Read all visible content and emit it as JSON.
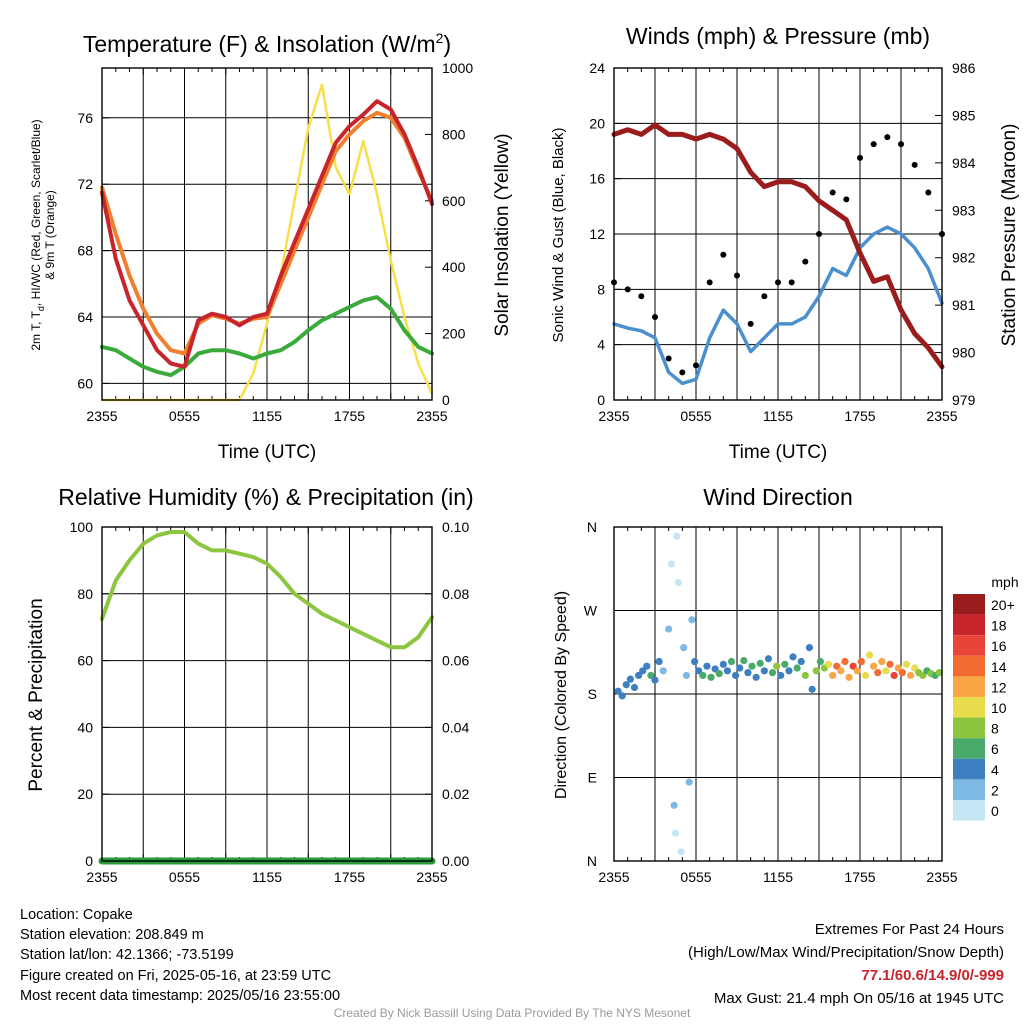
{
  "chart_data": [
    {
      "type": "line",
      "title": "Temperature (F) & Insolation (W/m²)",
      "xlabel": "Time (UTC)",
      "ylabel_left": "2m T, Td, HI/WC (Red, Green, Scarlet/Blue) & 9m T (Orange)",
      "ylabel_left_parts": {
        "a": "2m T, T",
        "sub": "d",
        "b": ", HI/WC (Red, Green, Scarlet/Blue)",
        "line2": "& 9m T (Orange)"
      },
      "ylabel_right": "Solar Insolation (Yellow)",
      "x_ticks": [
        "2355",
        "0555",
        "1155",
        "1755",
        "2355"
      ],
      "ylim_left": [
        59,
        79
      ],
      "ylim_right": [
        0,
        1000
      ],
      "yticks_left": [
        60,
        64,
        68,
        72,
        76
      ],
      "yticks_right": [
        0,
        200,
        400,
        600,
        800,
        1000
      ],
      "x": [
        0,
        1,
        2,
        3,
        4,
        5,
        6,
        7,
        8,
        9,
        10,
        11,
        12,
        13,
        14,
        15,
        16,
        17,
        18,
        19,
        20,
        21,
        22,
        23,
        24
      ],
      "series": [
        {
          "name": "2m T",
          "color": "#c8242b",
          "axis": "left",
          "values": [
            71.5,
            67.5,
            65.0,
            63.5,
            62.0,
            61.2,
            61.0,
            63.8,
            64.2,
            64.0,
            63.5,
            64.0,
            64.2,
            66.5,
            68.5,
            70.5,
            72.5,
            74.5,
            75.5,
            76.2,
            77.0,
            76.5,
            75.0,
            73.0,
            70.8
          ]
        },
        {
          "name": "9m T",
          "color": "#f07f2e",
          "axis": "left",
          "values": [
            71.8,
            69.0,
            66.5,
            64.5,
            63.0,
            62.0,
            61.8,
            63.6,
            64.1,
            63.9,
            63.6,
            63.9,
            64.0,
            66.0,
            68.0,
            70.0,
            72.0,
            74.0,
            75.0,
            75.8,
            76.3,
            76.0,
            74.8,
            72.8,
            71.0
          ]
        },
        {
          "name": "Td",
          "color": "#3aaa3a",
          "axis": "left",
          "values": [
            62.2,
            62.0,
            61.5,
            61.0,
            60.7,
            60.5,
            61.0,
            61.8,
            62.0,
            62.0,
            61.8,
            61.5,
            61.8,
            62.0,
            62.5,
            63.2,
            63.8,
            64.2,
            64.6,
            65.0,
            65.2,
            64.5,
            63.2,
            62.2,
            61.8
          ]
        },
        {
          "name": "Insolation",
          "color": "#f6e04a",
          "axis": "right",
          "values": [
            0,
            0,
            0,
            0,
            0,
            0,
            0,
            0,
            0,
            0,
            0,
            80,
            230,
            380,
            600,
            820,
            950,
            700,
            620,
            780,
            620,
            420,
            250,
            110,
            20
          ]
        }
      ]
    },
    {
      "type": "line",
      "title": "Winds (mph) & Pressure (mb)",
      "xlabel": "Time (UTC)",
      "ylabel_left": "Sonic Wind & Gust (Blue, Black)",
      "ylabel_right": "Station Pressure (Maroon)",
      "x_ticks": [
        "2355",
        "0555",
        "1155",
        "1755",
        "2355"
      ],
      "ylim_left": [
        0,
        24
      ],
      "ylim_right": [
        979,
        986
      ],
      "yticks_left": [
        0,
        4,
        8,
        12,
        16,
        20,
        24
      ],
      "yticks_right": [
        979,
        980,
        981,
        982,
        983,
        984,
        985,
        986
      ],
      "x": [
        0,
        1,
        2,
        3,
        4,
        5,
        6,
        7,
        8,
        9,
        10,
        11,
        12,
        13,
        14,
        15,
        16,
        17,
        18,
        19,
        20,
        21,
        22,
        23,
        24
      ],
      "series": [
        {
          "name": "Sonic Wind",
          "color": "#4a90cf",
          "axis": "left",
          "values": [
            5.5,
            5.2,
            5.0,
            4.5,
            2.0,
            1.2,
            1.5,
            4.5,
            6.5,
            5.5,
            3.5,
            4.5,
            5.5,
            5.5,
            6.0,
            7.5,
            9.5,
            9.0,
            11.0,
            12.0,
            12.5,
            12.0,
            11.0,
            9.5,
            7.0
          ]
        },
        {
          "name": "Gust",
          "color": "#000000",
          "axis": "left",
          "values": [
            8.5,
            8.0,
            7.5,
            6.0,
            3.0,
            2.0,
            2.5,
            8.5,
            10.5,
            9.0,
            5.5,
            7.5,
            8.5,
            8.5,
            10.0,
            12.0,
            15.0,
            14.5,
            17.5,
            18.5,
            19.0,
            18.5,
            17.0,
            15.0,
            12.0
          ]
        },
        {
          "name": "Station Pressure",
          "color": "#9b1c1c",
          "axis": "right",
          "values": [
            984.6,
            984.7,
            984.6,
            984.8,
            984.6,
            984.6,
            984.5,
            984.6,
            984.5,
            984.3,
            983.8,
            983.5,
            983.6,
            983.6,
            983.5,
            983.2,
            983.0,
            982.8,
            982.1,
            981.5,
            981.6,
            980.9,
            980.4,
            980.1,
            979.7
          ]
        }
      ]
    },
    {
      "type": "line",
      "title": "Relative Humidity (%) & Precipitation (in)",
      "xlabel": "",
      "ylabel_left": "Percent & Precipitation",
      "x_ticks": [
        "2355",
        "0555",
        "1155",
        "1755",
        "2355"
      ],
      "ylim_left": [
        0,
        100
      ],
      "ylim_right": [
        0,
        0.1
      ],
      "yticks_left": [
        0,
        20,
        40,
        60,
        80,
        100
      ],
      "yticks_right": [
        "0.00",
        "0.02",
        "0.04",
        "0.06",
        "0.08",
        "0.10"
      ],
      "x": [
        0,
        1,
        2,
        3,
        4,
        5,
        6,
        7,
        8,
        9,
        10,
        11,
        12,
        13,
        14,
        15,
        16,
        17,
        18,
        19,
        20,
        21,
        22,
        23,
        24
      ],
      "series": [
        {
          "name": "Relative Humidity",
          "color": "#8cc63f",
          "axis": "left",
          "values": [
            72.5,
            84,
            90,
            95,
            97.5,
            98.5,
            98.5,
            95,
            93,
            93,
            92,
            91,
            89,
            85,
            80,
            77,
            74,
            72,
            70,
            68,
            66,
            64,
            64,
            67,
            73
          ]
        },
        {
          "name": "Precipitation",
          "color": "#2a9a3a",
          "axis": "right",
          "values": [
            0,
            0,
            0,
            0,
            0,
            0,
            0,
            0,
            0,
            0,
            0,
            0,
            0,
            0,
            0,
            0,
            0,
            0,
            0,
            0,
            0,
            0,
            0,
            0,
            0
          ]
        }
      ]
    },
    {
      "type": "scatter",
      "title": "Wind Direction",
      "ylabel": "Direction (Colored By Speed)",
      "x_ticks": [
        "2355",
        "0555",
        "1155",
        "1755",
        "2355"
      ],
      "y_ticks": [
        "N",
        "E",
        "S",
        "W",
        "N"
      ],
      "ylim": [
        0,
        360
      ],
      "colorbar": {
        "unit": "mph",
        "labels": [
          "20+",
          "18",
          "16",
          "14",
          "12",
          "10",
          "8",
          "6",
          "4",
          "2",
          "0"
        ],
        "colors": [
          "#9b1c1c",
          "#c8242b",
          "#e8443a",
          "#f26b30",
          "#f9a646",
          "#e6dc4c",
          "#8cc63f",
          "#4aaa6a",
          "#3d7fc1",
          "#7eb9e3",
          "#c6e6f6"
        ]
      },
      "points": [
        {
          "x": 0.3,
          "y": 183,
          "speed": 4
        },
        {
          "x": 0.6,
          "y": 178,
          "speed": 4
        },
        {
          "x": 0.9,
          "y": 190,
          "speed": 4
        },
        {
          "x": 1.2,
          "y": 196,
          "speed": 4
        },
        {
          "x": 1.5,
          "y": 187,
          "speed": 4
        },
        {
          "x": 1.8,
          "y": 200,
          "speed": 4
        },
        {
          "x": 2.1,
          "y": 205,
          "speed": 4
        },
        {
          "x": 2.4,
          "y": 210,
          "speed": 4
        },
        {
          "x": 2.7,
          "y": 200,
          "speed": 6
        },
        {
          "x": 3.0,
          "y": 195,
          "speed": 4
        },
        {
          "x": 3.3,
          "y": 215,
          "speed": 4
        },
        {
          "x": 3.6,
          "y": 205,
          "speed": 2
        },
        {
          "x": 4.0,
          "y": 250,
          "speed": 2
        },
        {
          "x": 4.2,
          "y": 320,
          "speed": 0
        },
        {
          "x": 4.4,
          "y": 60,
          "speed": 2
        },
        {
          "x": 4.5,
          "y": 30,
          "speed": 0
        },
        {
          "x": 4.6,
          "y": 350,
          "speed": 0
        },
        {
          "x": 4.7,
          "y": 300,
          "speed": 0
        },
        {
          "x": 4.9,
          "y": 10,
          "speed": 0
        },
        {
          "x": 5.1,
          "y": 230,
          "speed": 2
        },
        {
          "x": 5.3,
          "y": 200,
          "speed": 2
        },
        {
          "x": 5.5,
          "y": 85,
          "speed": 2
        },
        {
          "x": 5.7,
          "y": 260,
          "speed": 2
        },
        {
          "x": 5.9,
          "y": 215,
          "speed": 4
        },
        {
          "x": 6.2,
          "y": 205,
          "speed": 4
        },
        {
          "x": 6.5,
          "y": 200,
          "speed": 6
        },
        {
          "x": 6.8,
          "y": 210,
          "speed": 4
        },
        {
          "x": 7.1,
          "y": 198,
          "speed": 6
        },
        {
          "x": 7.4,
          "y": 207,
          "speed": 4
        },
        {
          "x": 7.7,
          "y": 202,
          "speed": 6
        },
        {
          "x": 8.0,
          "y": 212,
          "speed": 4
        },
        {
          "x": 8.3,
          "y": 205,
          "speed": 4
        },
        {
          "x": 8.6,
          "y": 215,
          "speed": 6
        },
        {
          "x": 8.9,
          "y": 200,
          "speed": 4
        },
        {
          "x": 9.2,
          "y": 208,
          "speed": 4
        },
        {
          "x": 9.5,
          "y": 216,
          "speed": 6
        },
        {
          "x": 9.8,
          "y": 203,
          "speed": 4
        },
        {
          "x": 10.1,
          "y": 210,
          "speed": 6
        },
        {
          "x": 10.4,
          "y": 198,
          "speed": 4
        },
        {
          "x": 10.7,
          "y": 213,
          "speed": 6
        },
        {
          "x": 11.0,
          "y": 205,
          "speed": 4
        },
        {
          "x": 11.3,
          "y": 218,
          "speed": 4
        },
        {
          "x": 11.6,
          "y": 203,
          "speed": 6
        },
        {
          "x": 11.9,
          "y": 210,
          "speed": 8
        },
        {
          "x": 12.2,
          "y": 200,
          "speed": 4
        },
        {
          "x": 12.5,
          "y": 212,
          "speed": 6
        },
        {
          "x": 12.8,
          "y": 205,
          "speed": 4
        },
        {
          "x": 13.1,
          "y": 220,
          "speed": 4
        },
        {
          "x": 13.4,
          "y": 208,
          "speed": 6
        },
        {
          "x": 13.7,
          "y": 215,
          "speed": 4
        },
        {
          "x": 14.0,
          "y": 200,
          "speed": 8
        },
        {
          "x": 14.3,
          "y": 230,
          "speed": 4
        },
        {
          "x": 14.5,
          "y": 185,
          "speed": 4
        },
        {
          "x": 14.8,
          "y": 205,
          "speed": 8
        },
        {
          "x": 15.1,
          "y": 215,
          "speed": 6
        },
        {
          "x": 15.4,
          "y": 208,
          "speed": 8
        },
        {
          "x": 15.7,
          "y": 212,
          "speed": 10
        },
        {
          "x": 16.0,
          "y": 200,
          "speed": 12
        },
        {
          "x": 16.3,
          "y": 210,
          "speed": 14
        },
        {
          "x": 16.6,
          "y": 205,
          "speed": 12
        },
        {
          "x": 16.9,
          "y": 215,
          "speed": 14
        },
        {
          "x": 17.2,
          "y": 198,
          "speed": 12
        },
        {
          "x": 17.5,
          "y": 210,
          "speed": 16
        },
        {
          "x": 17.8,
          "y": 205,
          "speed": 12
        },
        {
          "x": 18.1,
          "y": 215,
          "speed": 14
        },
        {
          "x": 18.4,
          "y": 200,
          "speed": 10
        },
        {
          "x": 18.7,
          "y": 222,
          "speed": 10
        },
        {
          "x": 19.0,
          "y": 210,
          "speed": 12
        },
        {
          "x": 19.3,
          "y": 203,
          "speed": 14
        },
        {
          "x": 19.6,
          "y": 215,
          "speed": 12
        },
        {
          "x": 19.9,
          "y": 205,
          "speed": 10
        },
        {
          "x": 20.2,
          "y": 212,
          "speed": 14
        },
        {
          "x": 20.5,
          "y": 200,
          "speed": 16
        },
        {
          "x": 20.8,
          "y": 208,
          "speed": 12
        },
        {
          "x": 21.1,
          "y": 203,
          "speed": 14
        },
        {
          "x": 21.4,
          "y": 212,
          "speed": 10
        },
        {
          "x": 21.7,
          "y": 200,
          "speed": 12
        },
        {
          "x": 22.0,
          "y": 208,
          "speed": 10
        },
        {
          "x": 22.3,
          "y": 203,
          "speed": 8
        },
        {
          "x": 22.6,
          "y": 200,
          "speed": 8
        },
        {
          "x": 22.9,
          "y": 205,
          "speed": 6
        },
        {
          "x": 23.2,
          "y": 202,
          "speed": 8
        },
        {
          "x": 23.5,
          "y": 200,
          "speed": 6
        },
        {
          "x": 23.8,
          "y": 203,
          "speed": 8
        }
      ]
    }
  ],
  "info": {
    "location": "Location: Copake",
    "elevation": "Station elevation: 208.849 m",
    "latlon": "Station lat/lon: 42.1366; -73.5199",
    "created": "Figure created on Fri, 2025-05-16, at 23:59 UTC",
    "recent": "Most recent data timestamp: 2025/05/16 23:55:00"
  },
  "extremes": {
    "title": "Extremes For Past 24 Hours",
    "subtitle": "(High/Low/Max Wind/Precipitation/Snow Depth)",
    "values": "77.1/60.6/14.9/0/-999",
    "gust": "Max Gust: 21.4 mph On 05/16 at 1945 UTC"
  },
  "credit": "Created By Nick Bassill Using Data Provided By The NYS Mesonet"
}
